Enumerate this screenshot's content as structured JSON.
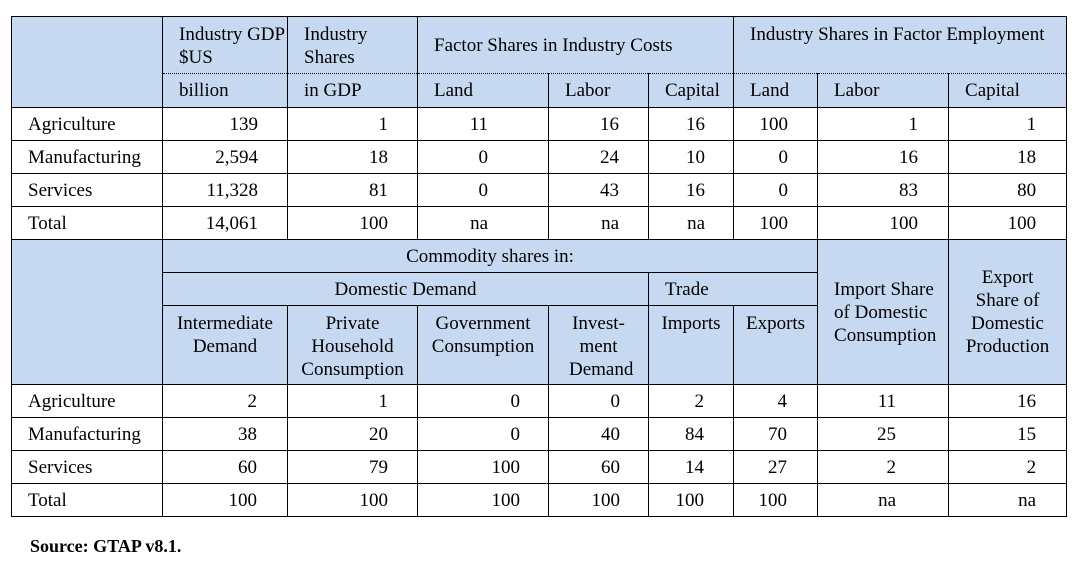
{
  "top_table": {
    "header_row1": [
      "Industry GDP $US",
      "Industry Shares",
      "Factor Shares in Industry Costs",
      "Industry Shares in Factor Employment"
    ],
    "header_row2": [
      "billion",
      "in GDP",
      "Land",
      "Labor",
      "Capital",
      "Land",
      "Labor",
      "Capital"
    ],
    "rows": [
      [
        "Agriculture",
        "139",
        "1",
        "11",
        "16",
        "16",
        "100",
        "1",
        "1"
      ],
      [
        "Manufacturing",
        "2,594",
        "18",
        "0",
        "24",
        "10",
        "0",
        "16",
        "18"
      ],
      [
        "Services",
        "11,328",
        "81",
        "0",
        "43",
        "16",
        "0",
        "83",
        "80"
      ],
      [
        "Total",
        "14,061",
        "100",
        "na",
        "na",
        "na",
        "100",
        "100",
        "100"
      ]
    ]
  },
  "bottom_table": {
    "group_header": "Commodity shares in:",
    "subgroups": [
      "Domestic Demand",
      "Trade"
    ],
    "side_headers": [
      "Import Share of Domestic Consumption",
      "Export Share of Domestic Production"
    ],
    "columns": [
      "Intermediate Demand",
      "Private Household Consumption",
      "Government Consumption",
      "Invest-ment Demand",
      "Imports",
      "Exports"
    ],
    "rows": [
      [
        "Agriculture",
        "2",
        "1",
        "0",
        "0",
        "2",
        "4",
        "11",
        "16"
      ],
      [
        "Manufacturing",
        "38",
        "20",
        "0",
        "40",
        "84",
        "70",
        "25",
        "15"
      ],
      [
        "Services",
        "60",
        "79",
        "100",
        "60",
        "14",
        "27",
        "2",
        "2"
      ],
      [
        "Total",
        "100",
        "100",
        "100",
        "100",
        "100",
        "100",
        "na",
        "na"
      ]
    ]
  },
  "source": "Source:  GTAP v8.1."
}
